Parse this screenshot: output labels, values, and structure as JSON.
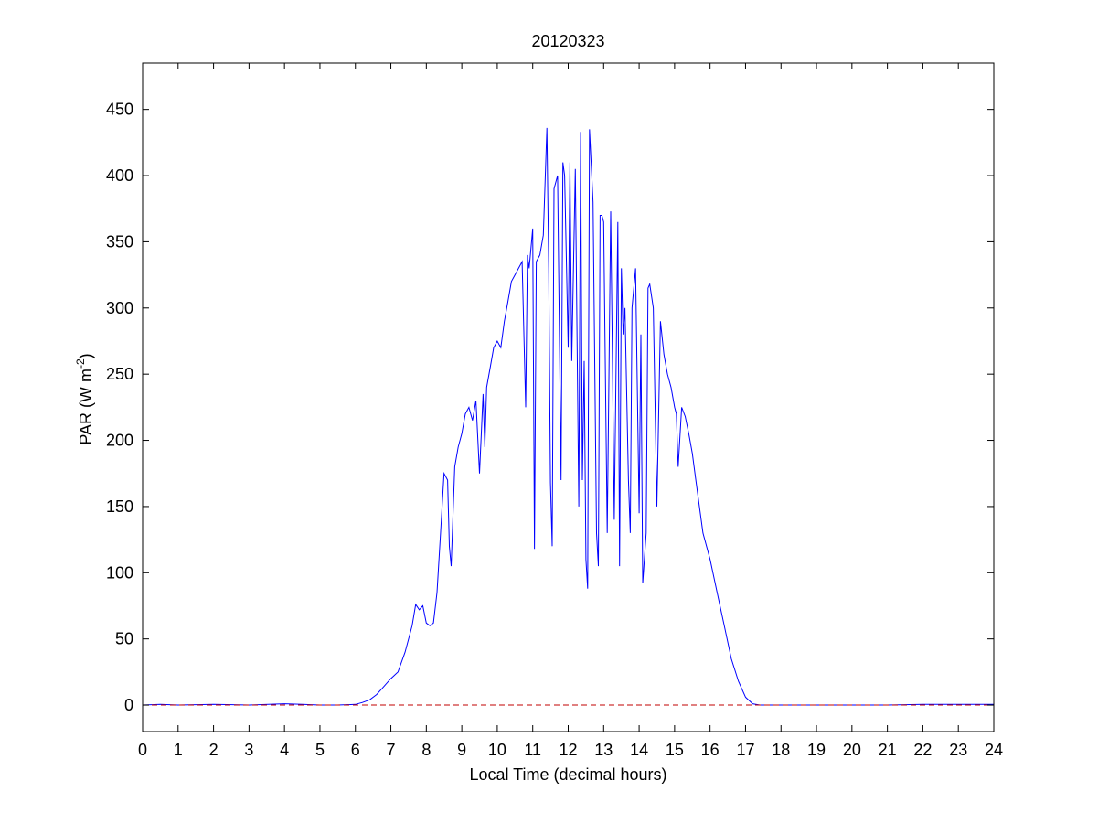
{
  "chart_data": {
    "type": "line",
    "title": "20120323",
    "xlabel": "Local Time (decimal hours)",
    "ylabel_main": "PAR (W m",
    "ylabel_sup": "-2",
    "ylabel_close": ")",
    "xlim": [
      0,
      24
    ],
    "ylim": [
      -20,
      485
    ],
    "xticks": [
      0,
      1,
      2,
      3,
      4,
      5,
      6,
      7,
      8,
      9,
      10,
      11,
      12,
      13,
      14,
      15,
      16,
      17,
      18,
      19,
      20,
      21,
      22,
      23,
      24
    ],
    "yticks": [
      0,
      50,
      100,
      150,
      200,
      250,
      300,
      350,
      400,
      450
    ],
    "grid": false,
    "colors": {
      "series": "#0000ff",
      "baseline": "#c00000",
      "axes": "#000000"
    },
    "series": [
      {
        "style": "solid",
        "x": [
          0,
          0.5,
          1,
          2,
          3,
          4,
          4.5,
          5,
          5.5,
          6,
          6.2,
          6.4,
          6.6,
          6.8,
          7.0,
          7.2,
          7.4,
          7.6,
          7.7,
          7.8,
          7.9,
          8.0,
          8.1,
          8.2,
          8.3,
          8.4,
          8.5,
          8.6,
          8.65,
          8.7,
          8.8,
          8.9,
          9.0,
          9.1,
          9.2,
          9.3,
          9.4,
          9.5,
          9.6,
          9.65,
          9.7,
          9.8,
          9.9,
          10.0,
          10.1,
          10.2,
          10.3,
          10.4,
          10.5,
          10.6,
          10.7,
          10.8,
          10.85,
          10.9,
          11.0,
          11.05,
          11.1,
          11.2,
          11.3,
          11.4,
          11.45,
          11.5,
          11.55,
          11.6,
          11.7,
          11.8,
          11.85,
          11.9,
          12.0,
          12.05,
          12.1,
          12.2,
          12.3,
          12.35,
          12.4,
          12.45,
          12.5,
          12.55,
          12.6,
          12.7,
          12.8,
          12.85,
          12.9,
          12.95,
          13.0,
          13.1,
          13.2,
          13.3,
          13.4,
          13.45,
          13.5,
          13.55,
          13.6,
          13.7,
          13.75,
          13.8,
          13.9,
          14.0,
          14.05,
          14.1,
          14.2,
          14.25,
          14.3,
          14.4,
          14.5,
          14.6,
          14.7,
          14.8,
          14.9,
          15.0,
          15.05,
          15.1,
          15.2,
          15.3,
          15.4,
          15.5,
          15.6,
          15.7,
          15.8,
          16.0,
          16.2,
          16.4,
          16.6,
          16.8,
          17.0,
          17.2,
          17.4,
          17.6,
          17.8,
          18.0,
          18.2,
          18.4,
          18.6,
          18.8,
          19.0,
          20,
          21,
          22,
          23,
          24
        ],
        "y": [
          0,
          0.5,
          0,
          0.5,
          0,
          1,
          0.5,
          0,
          0,
          0.5,
          2,
          4,
          8,
          14,
          20,
          25,
          40,
          60,
          76,
          72,
          75,
          62,
          60,
          62,
          85,
          130,
          175,
          170,
          120,
          105,
          180,
          195,
          205,
          220,
          225,
          215,
          230,
          175,
          235,
          195,
          240,
          255,
          270,
          275,
          270,
          290,
          305,
          320,
          325,
          330,
          335,
          225,
          340,
          330,
          360,
          118,
          335,
          340,
          355,
          436,
          330,
          168,
          120,
          390,
          400,
          170,
          410,
          400,
          270,
          410,
          260,
          405,
          150,
          433,
          170,
          260,
          110,
          88,
          435,
          380,
          130,
          105,
          370,
          370,
          365,
          130,
          373,
          140,
          365,
          105,
          330,
          280,
          300,
          170,
          130,
          300,
          330,
          145,
          280,
          92,
          130,
          315,
          318,
          300,
          150,
          290,
          265,
          250,
          240,
          225,
          220,
          180,
          225,
          218,
          205,
          190,
          170,
          150,
          130,
          110,
          85,
          60,
          35,
          18,
          6,
          1,
          0,
          0,
          0,
          0,
          0,
          0,
          0,
          0,
          0,
          0,
          0,
          0.5,
          0.5,
          0.5
        ]
      },
      {
        "style": "dashed",
        "x": [
          0,
          24
        ],
        "y": [
          0,
          0
        ]
      }
    ]
  }
}
